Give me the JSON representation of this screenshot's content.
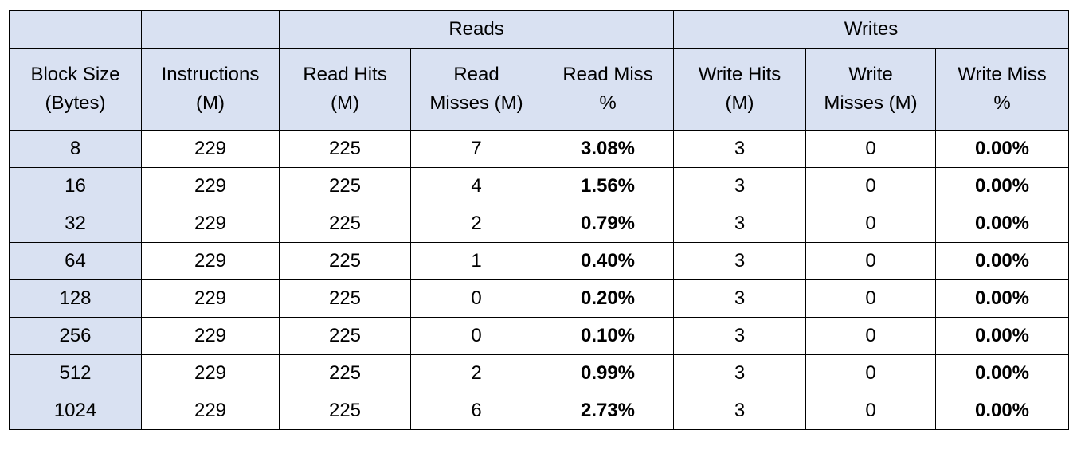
{
  "table": {
    "group_headers": {
      "reads": "Reads",
      "writes": "Writes"
    },
    "columns": [
      [
        "Block Size",
        "(Bytes)"
      ],
      [
        "Instructions",
        "(M)"
      ],
      [
        "Read Hits",
        "(M)"
      ],
      [
        "Read",
        "Misses (M)"
      ],
      [
        "Read Miss",
        "%"
      ],
      [
        "Write Hits",
        "(M)"
      ],
      [
        "Write",
        "Misses (M)"
      ],
      [
        "Write Miss",
        "%"
      ]
    ],
    "rows": [
      [
        "8",
        "229",
        "225",
        "7",
        "3.08%",
        "3",
        "0",
        "0.00%"
      ],
      [
        "16",
        "229",
        "225",
        "4",
        "1.56%",
        "3",
        "0",
        "0.00%"
      ],
      [
        "32",
        "229",
        "225",
        "2",
        "0.79%",
        "3",
        "0",
        "0.00%"
      ],
      [
        "64",
        "229",
        "225",
        "1",
        "0.40%",
        "3",
        "0",
        "0.00%"
      ],
      [
        "128",
        "229",
        "225",
        "0",
        "0.20%",
        "3",
        "0",
        "0.00%"
      ],
      [
        "256",
        "229",
        "225",
        "0",
        "0.10%",
        "3",
        "0",
        "0.00%"
      ],
      [
        "512",
        "229",
        "225",
        "2",
        "0.99%",
        "3",
        "0",
        "0.00%"
      ],
      [
        "1024",
        "229",
        "225",
        "6",
        "2.73%",
        "3",
        "0",
        "0.00%"
      ]
    ],
    "bold_columns": [
      4,
      7
    ],
    "colors": {
      "header_bg": "#d9e1f2",
      "border": "#000000"
    }
  }
}
